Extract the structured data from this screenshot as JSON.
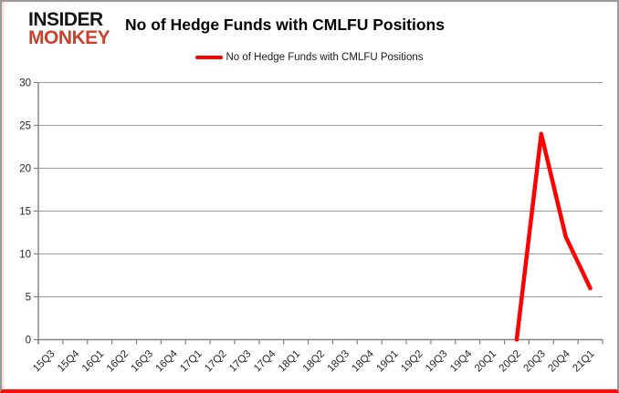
{
  "logo": {
    "line1": "INSIDER",
    "line2": "MONKEY",
    "line1_color": "#141414",
    "line2_color": "#c9422e"
  },
  "header": {
    "title": "No of Hedge Funds with CMLFU Positions"
  },
  "legend": {
    "label": "No of Hedge Funds with CMLFU Positions",
    "line_color": "#fe0000"
  },
  "chart_data": {
    "type": "line",
    "title": "No of Hedge Funds with CMLFU Positions",
    "categories": [
      "15Q3",
      "15Q4",
      "16Q1",
      "16Q2",
      "16Q3",
      "16Q4",
      "17Q1",
      "17Q2",
      "17Q3",
      "17Q4",
      "18Q1",
      "18Q2",
      "18Q3",
      "18Q4",
      "19Q1",
      "19Q2",
      "19Q3",
      "19Q4",
      "20Q1",
      "20Q2",
      "20Q3",
      "20Q4",
      "21Q1"
    ],
    "series": [
      {
        "name": "No of Hedge Funds with CMLFU Positions",
        "color": "#fe0000",
        "values": [
          null,
          null,
          null,
          null,
          null,
          null,
          null,
          null,
          null,
          null,
          null,
          null,
          null,
          null,
          null,
          null,
          null,
          null,
          null,
          0,
          24,
          12,
          6
        ]
      }
    ],
    "xlabel": "",
    "ylabel": "",
    "ylim": [
      0,
      30
    ],
    "ytick_interval": 5,
    "grid": true,
    "legend_position": "top-center",
    "axis_color": "#808080",
    "grid_color": "#999999",
    "tick_label_color": "#262626"
  }
}
